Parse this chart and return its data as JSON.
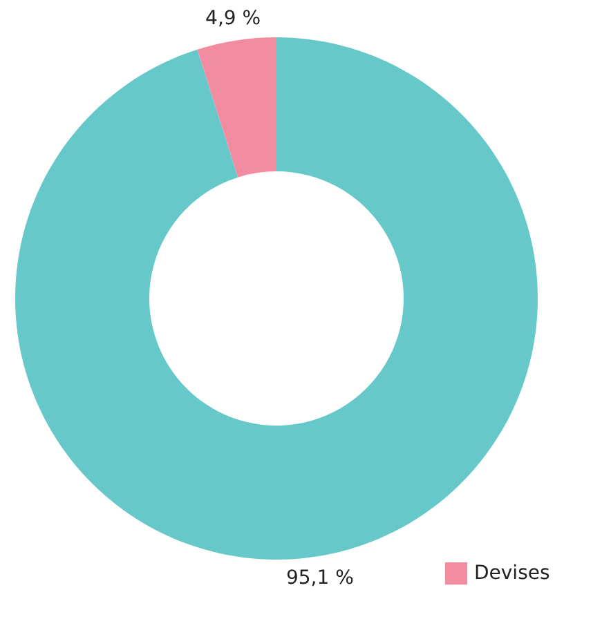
{
  "chart_data": {
    "type": "donut",
    "categories": [
      null,
      "Devises"
    ],
    "values": [
      95.1,
      4.9
    ],
    "colors": [
      "#66c8c8",
      "#f28ca0"
    ],
    "value_labels": [
      "95,1 %",
      "4,9 %"
    ],
    "legend": "bottom right"
  }
}
